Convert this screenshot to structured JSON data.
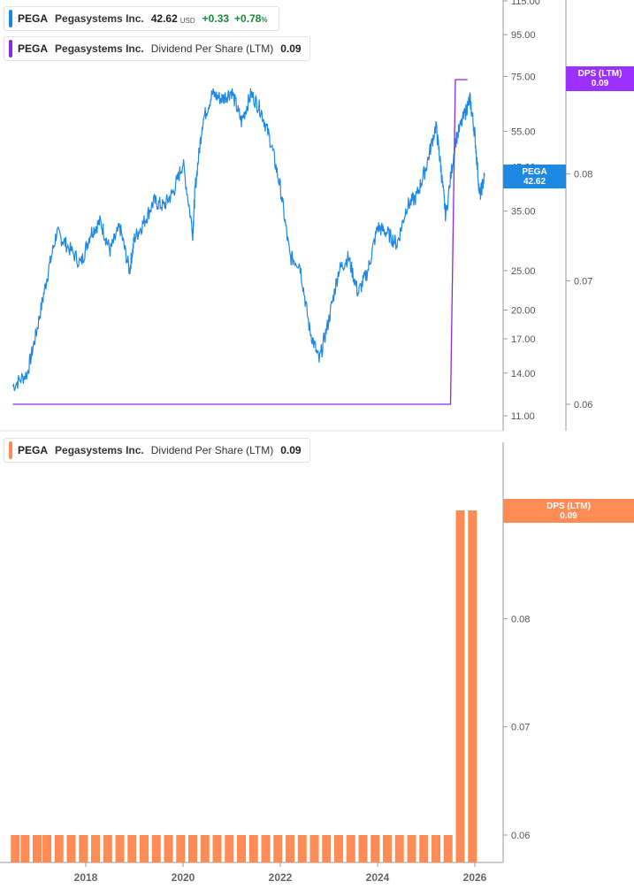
{
  "legends": {
    "price": {
      "symbol": "PEGA",
      "name": "Pegasystems Inc.",
      "value": "42.62",
      "currency": "USD",
      "change": "+0.33",
      "change_pct": "+0.78",
      "pct_sign": "%"
    },
    "dps_top": {
      "symbol": "PEGA",
      "name": "Pegasystems Inc.",
      "metric": "Dividend Per Share (LTM)",
      "value": "0.09"
    },
    "dps_bottom": {
      "symbol": "PEGA",
      "name": "Pegasystems Inc.",
      "metric": "Dividend Per Share (LTM)",
      "value": "0.09"
    }
  },
  "tags": {
    "price": {
      "line1": "PEGA",
      "line2": "42.62"
    },
    "dps_top": {
      "line1": "DPS (LTM)",
      "line2": "0.09"
    },
    "dps_bottom": {
      "line1": "DPS (LTM)",
      "line2": "0.09"
    }
  },
  "colors": {
    "price": "#1e88e5",
    "dps_line": "#8a2be2",
    "dps_bar": "#ff8c55",
    "dps_tag": "#9b30ff",
    "grid_axis": "#999999"
  },
  "chart_data": [
    {
      "type": "line",
      "scale": "log",
      "price_axis_ticks": [
        "115.00",
        "95.00",
        "75.00",
        "55.00",
        "45.00",
        "35.00",
        "25.00",
        "20.00",
        "17.00",
        "14.00",
        "11.00"
      ],
      "price_axis_tick_values": [
        115,
        95,
        75,
        55,
        45,
        35,
        25,
        20,
        17,
        14,
        11
      ],
      "dps_axis_ticks": [
        "0.08",
        "0.07",
        "0.06"
      ],
      "dps_axis_tick_values": [
        0.08,
        0.07,
        0.06
      ],
      "series": [
        {
          "name": "PEGA",
          "x": [
            2016.5,
            2016.8,
            2017.0,
            2017.2,
            2017.4,
            2017.6,
            2017.9,
            2018.1,
            2018.3,
            2018.5,
            2018.7,
            2018.9,
            2019.0,
            2019.2,
            2019.4,
            2019.6,
            2019.8,
            2020.0,
            2020.2,
            2020.25,
            2020.4,
            2020.6,
            2020.8,
            2021.0,
            2021.2,
            2021.4,
            2021.6,
            2021.8,
            2022.0,
            2022.2,
            2022.4,
            2022.6,
            2022.8,
            2023.0,
            2023.2,
            2023.4,
            2023.6,
            2023.8,
            2024.0,
            2024.2,
            2024.4,
            2024.6,
            2024.8,
            2025.0,
            2025.2,
            2025.3,
            2025.4,
            2025.6,
            2025.8,
            2025.9,
            2026.0,
            2026.1,
            2026.2
          ],
          "values": [
            13,
            14,
            18,
            24,
            31,
            29,
            26,
            31,
            33,
            28,
            32,
            25,
            30,
            33,
            37,
            36,
            39,
            46,
            31,
            40,
            58,
            68,
            66,
            69,
            58,
            68,
            62,
            52,
            40,
            27,
            26,
            18,
            15,
            19,
            25,
            27,
            22,
            25,
            32,
            31,
            29,
            36,
            38,
            45,
            57,
            45,
            34,
            52,
            61,
            66,
            54,
            38,
            42.62
          ]
        },
        {
          "name": "Dividend Per Share (LTM)",
          "x": [
            2016.5,
            2025.5,
            2025.6,
            2025.85
          ],
          "values": [
            0.06,
            0.06,
            0.09,
            0.09
          ]
        }
      ]
    },
    {
      "type": "bar",
      "series": [
        {
          "name": "Dividend Per Share (LTM)",
          "x": [
            2016.55,
            2016.75,
            2017.0,
            2017.2,
            2017.45,
            2017.7,
            2017.95,
            2018.2,
            2018.45,
            2018.7,
            2018.95,
            2019.2,
            2019.45,
            2019.7,
            2019.95,
            2020.2,
            2020.45,
            2020.7,
            2020.95,
            2021.2,
            2021.45,
            2021.7,
            2021.95,
            2022.2,
            2022.45,
            2022.7,
            2022.95,
            2023.2,
            2023.45,
            2023.7,
            2023.95,
            2024.2,
            2024.45,
            2024.7,
            2024.95,
            2025.2,
            2025.45,
            2025.7,
            2025.95
          ],
          "values": [
            0.06,
            0.06,
            0.06,
            0.06,
            0.06,
            0.06,
            0.06,
            0.06,
            0.06,
            0.06,
            0.06,
            0.06,
            0.06,
            0.06,
            0.06,
            0.06,
            0.06,
            0.06,
            0.06,
            0.06,
            0.06,
            0.06,
            0.06,
            0.06,
            0.06,
            0.06,
            0.06,
            0.06,
            0.06,
            0.06,
            0.06,
            0.06,
            0.06,
            0.06,
            0.06,
            0.06,
            0.06,
            0.09,
            0.09
          ]
        }
      ],
      "axis_ticks": [
        "0.09",
        "0.08",
        "0.07",
        "0.06"
      ],
      "axis_tick_values": [
        0.09,
        0.08,
        0.07,
        0.06
      ],
      "x_ticks": [
        "2018",
        "2020",
        "2022",
        "2024",
        "2026"
      ],
      "x_tick_values": [
        2018,
        2020,
        2022,
        2024,
        2026
      ]
    }
  ]
}
